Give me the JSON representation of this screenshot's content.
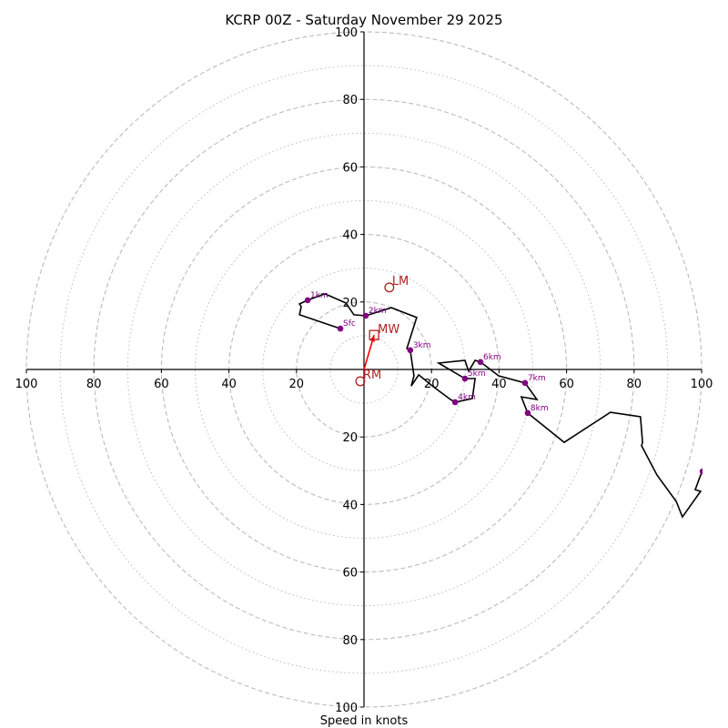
{
  "chart_data": {
    "type": "line",
    "subtype": "hodograph",
    "title": "KCRP 00Z - Saturday November 29 2025",
    "xlabel": "Speed in knots",
    "rlim": [
      0,
      100
    ],
    "ring_major": [
      20,
      40,
      60,
      80,
      100
    ],
    "ring_minor": [
      10,
      30,
      50,
      70,
      90
    ],
    "tick_labels": [
      "20",
      "40",
      "60",
      "80",
      "100"
    ],
    "grid": true,
    "colors": {
      "trace": "#000000",
      "levels": "#800080",
      "motion": "#b22222",
      "shear_arrow": "#ff0000",
      "grid": "#bbbbbb"
    },
    "trace": [
      [
        -7.0,
        12.1
      ],
      [
        -19.1,
        16.2
      ],
      [
        -18.6,
        18.6
      ],
      [
        -19.1,
        19.4
      ],
      [
        -16.7,
        20.5
      ],
      [
        -11.6,
        22.4
      ],
      [
        -5.4,
        19.7
      ],
      [
        -3.0,
        16.2
      ],
      [
        0.5,
        15.9
      ],
      [
        8.1,
        18.3
      ],
      [
        15.6,
        15.4
      ],
      [
        12.7,
        6.2
      ],
      [
        13.7,
        5.7
      ],
      [
        14.8,
        -1.9
      ],
      [
        14.0,
        -4.9
      ],
      [
        16.2,
        -1.6
      ],
      [
        20.5,
        -5.1
      ],
      [
        25.6,
        -8.9
      ],
      [
        27.0,
        -9.7
      ],
      [
        32.1,
        -8.6
      ],
      [
        32.9,
        -2.7
      ],
      [
        29.9,
        -2.7
      ],
      [
        22.1,
        1.9
      ],
      [
        29.9,
        2.7
      ],
      [
        31.0,
        -0.5
      ],
      [
        32.9,
        2.7
      ],
      [
        34.5,
        2.2
      ],
      [
        39.9,
        -1.9
      ],
      [
        47.7,
        -4.0
      ],
      [
        51.2,
        -8.9
      ],
      [
        46.6,
        -8.1
      ],
      [
        48.5,
        -12.9
      ],
      [
        59.3,
        -21.6
      ],
      [
        73.0,
        -12.7
      ],
      [
        81.9,
        -14.0
      ],
      [
        82.5,
        -21.6
      ],
      [
        82.2,
        -22.6
      ],
      [
        86.8,
        -31.3
      ],
      [
        92.5,
        -39.1
      ],
      [
        94.3,
        -43.7
      ],
      [
        99.7,
        -36.1
      ],
      [
        98.1,
        -35.6
      ],
      [
        99.7,
        -31.3
      ],
      [
        100.3,
        -30.2
      ]
    ],
    "levels": [
      {
        "label": "Sfc",
        "u": -7.0,
        "v": 12.1
      },
      {
        "label": "1km",
        "u": -16.7,
        "v": 20.5
      },
      {
        "label": "2km",
        "u": 0.5,
        "v": 15.9
      },
      {
        "label": "3km",
        "u": 13.7,
        "v": 5.7
      },
      {
        "label": "4km",
        "u": 27.0,
        "v": -9.7
      },
      {
        "label": "5km",
        "u": 29.9,
        "v": -2.7
      },
      {
        "label": "6km",
        "u": 34.5,
        "v": 2.2
      },
      {
        "label": "7km",
        "u": 47.7,
        "v": -4.0
      },
      {
        "label": "8km",
        "u": 48.5,
        "v": -12.9
      },
      {
        "label": "",
        "u": 100.3,
        "v": -30.2
      }
    ],
    "storm_motion": {
      "LM": {
        "label": "LM",
        "u": 7.5,
        "v": 24.3
      },
      "MW": {
        "label": "MW",
        "u": 3.0,
        "v": 10.2
      },
      "RM": {
        "label": "RM",
        "u": -1.1,
        "v": -3.5
      }
    }
  }
}
